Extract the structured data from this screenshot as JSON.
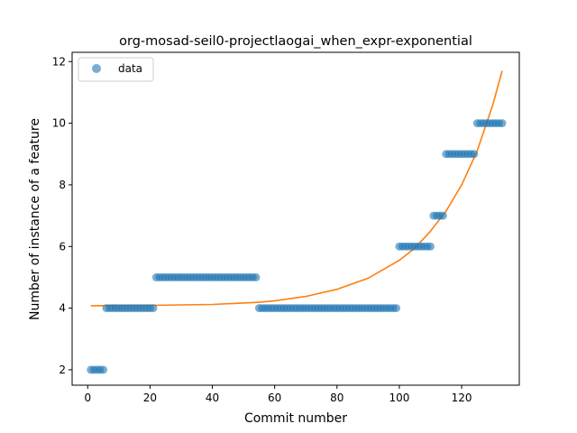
{
  "chart_data": {
    "type": "scatter",
    "title": "org-mosad-seil0-projectlaogai_when_expr-exponential",
    "xlabel": "Commit number",
    "ylabel": "Number of instance of a feature",
    "xlim": [
      -5,
      138.5
    ],
    "ylim": [
      1.5,
      12.3
    ],
    "xticks": [
      0,
      20,
      40,
      60,
      80,
      100,
      120
    ],
    "yticks": [
      2,
      4,
      6,
      8,
      10,
      12
    ],
    "grid": false,
    "legend": {
      "position": "top-left",
      "entries": [
        "data"
      ]
    },
    "colors": {
      "data": "#1f77b4",
      "fit": "#ff7f0e"
    },
    "series": [
      {
        "name": "data",
        "kind": "scatter",
        "segments": [
          {
            "x_start": 1,
            "x_end": 5,
            "y": 2
          },
          {
            "x_start": 6,
            "x_end": 21,
            "y": 4
          },
          {
            "x_start": 22,
            "x_end": 54,
            "y": 5
          },
          {
            "x_start": 55,
            "x_end": 99,
            "y": 4
          },
          {
            "x_start": 100,
            "x_end": 110,
            "y": 6
          },
          {
            "x_start": 111,
            "x_end": 114,
            "y": 7
          },
          {
            "x_start": 115,
            "x_end": 124,
            "y": 9
          },
          {
            "x_start": 125,
            "x_end": 133,
            "y": 10
          }
        ]
      },
      {
        "kind": "line",
        "x": [
          1,
          20,
          40,
          55,
          60,
          70,
          80,
          90,
          100,
          105,
          110,
          115,
          120,
          125,
          130,
          133
        ],
        "y": [
          4.08,
          4.09,
          4.12,
          4.19,
          4.24,
          4.38,
          4.61,
          4.97,
          5.55,
          5.95,
          6.5,
          7.15,
          8.0,
          9.1,
          10.6,
          11.7
        ]
      }
    ]
  }
}
